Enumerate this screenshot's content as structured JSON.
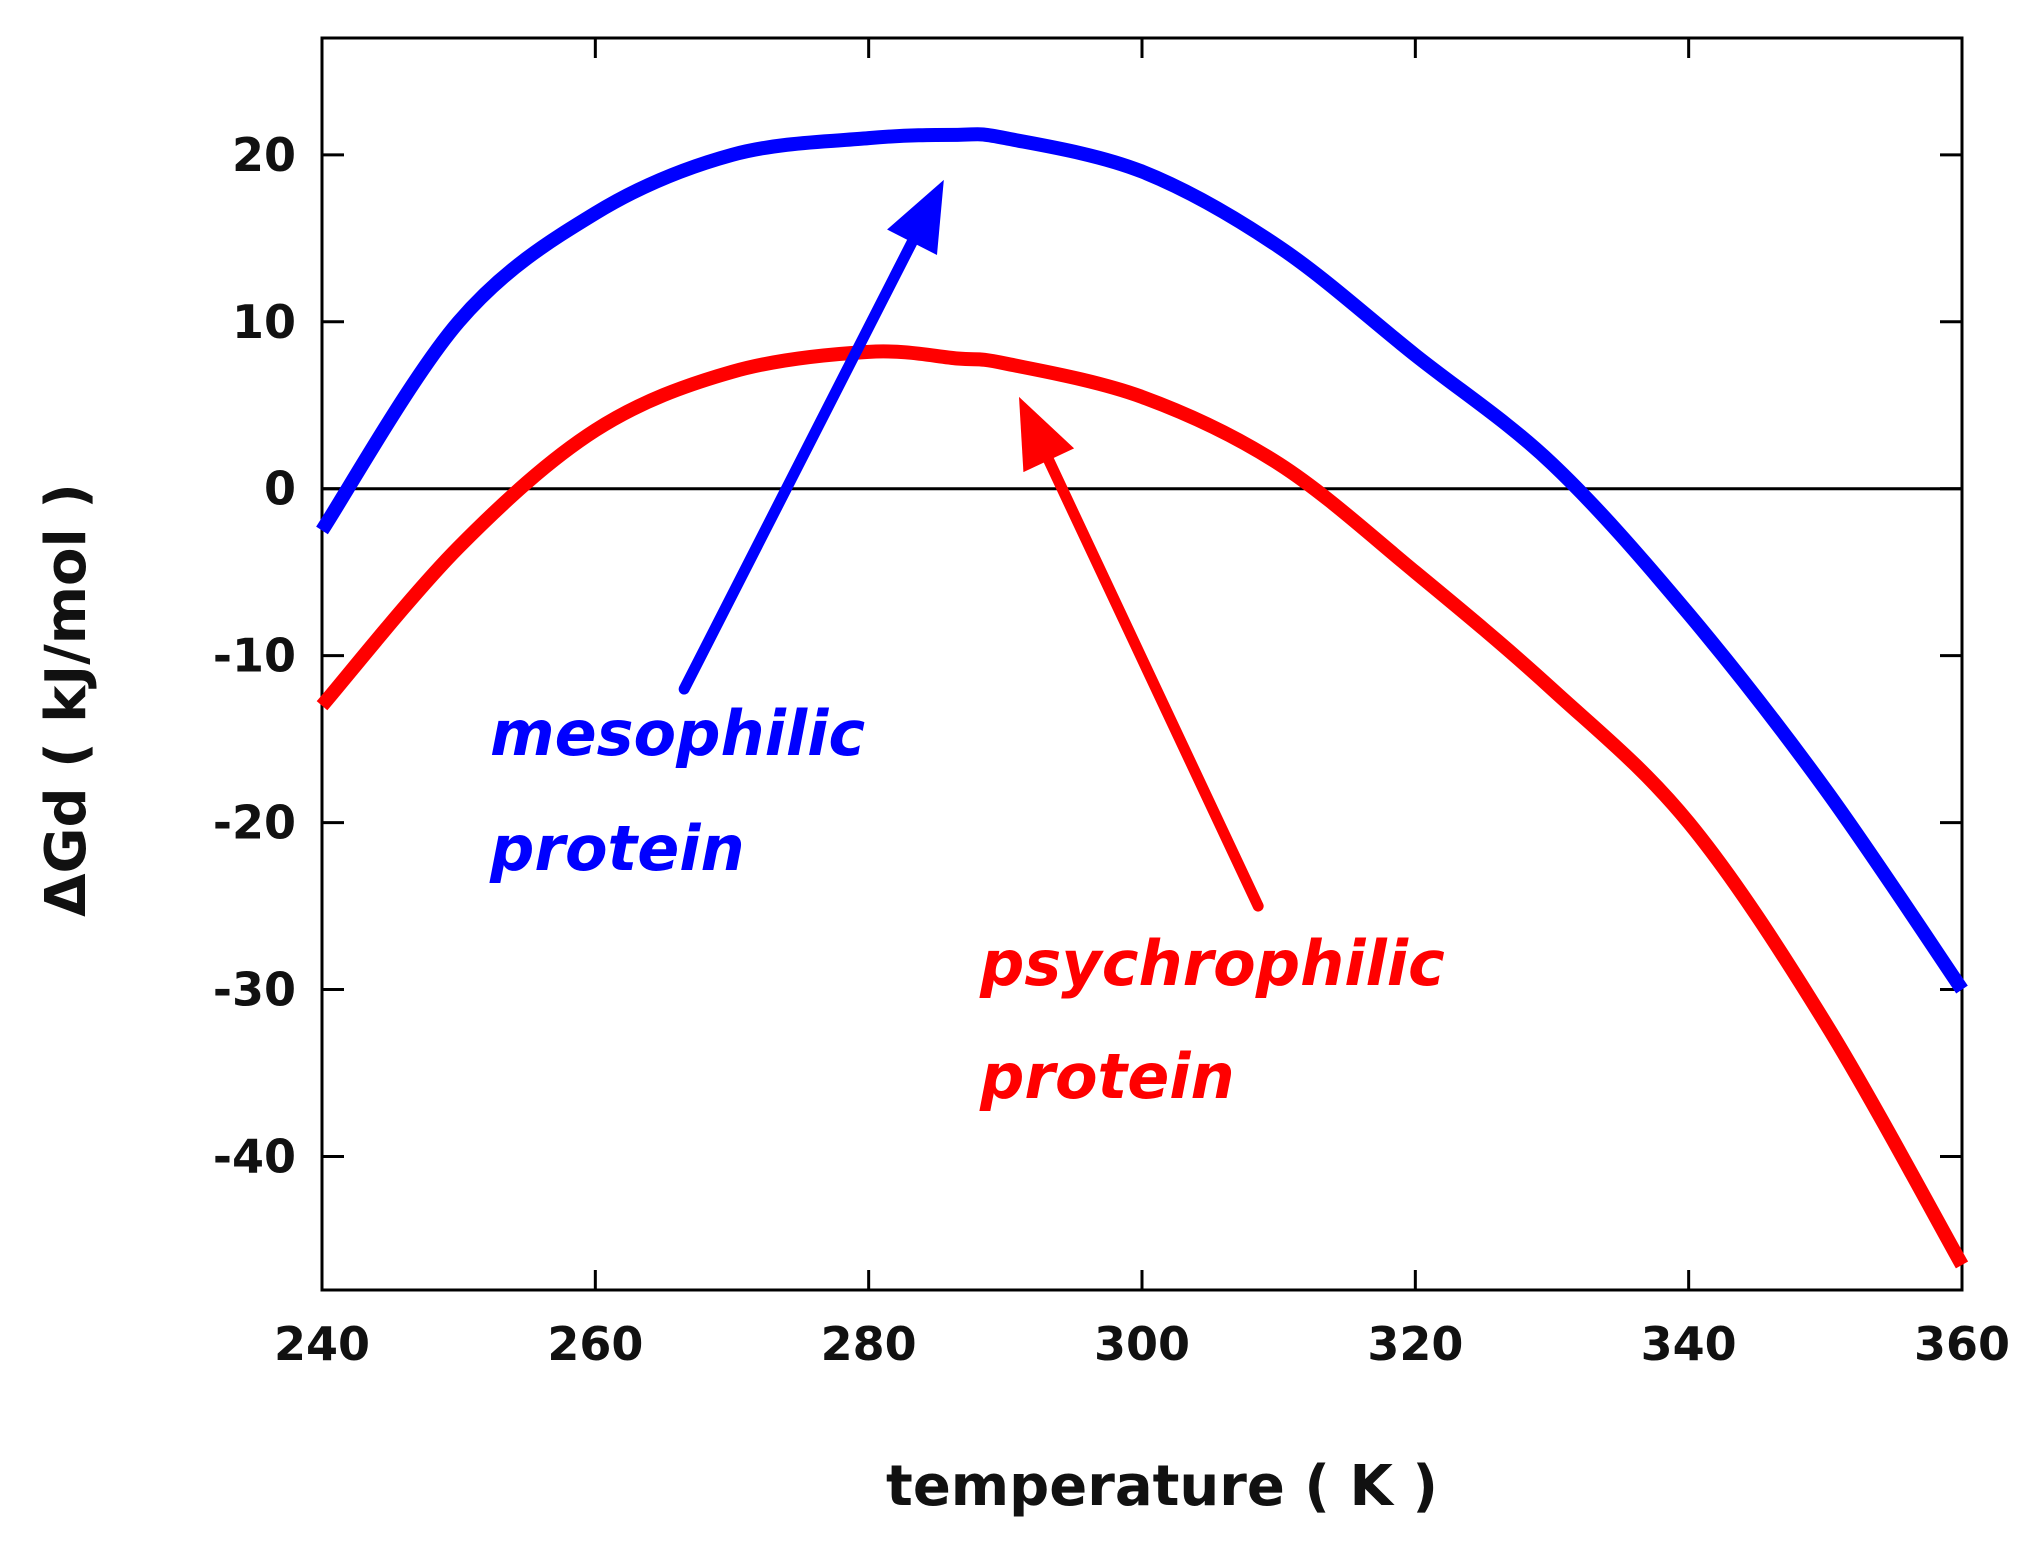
{
  "chart_data": {
    "type": "line",
    "title": "",
    "xlabel": "temperature  ( K )",
    "ylabel": "ΔGd ( kJ/mol )",
    "xlim": [
      240,
      360
    ],
    "ylim": [
      -48,
      27
    ],
    "xticks": [
      240,
      260,
      280,
      300,
      320,
      340,
      360
    ],
    "yticks": [
      20,
      10,
      0,
      -10,
      -20,
      -30,
      -40
    ],
    "xtick_labels": [
      "240",
      "260",
      "280",
      "300",
      "320",
      "340",
      "360"
    ],
    "ytick_labels": [
      "20",
      "10",
      "0",
      "-10",
      "-20",
      "-30",
      "-40"
    ],
    "zero_line": true,
    "grid": false,
    "x": [
      240,
      250,
      260,
      270,
      280,
      286.5,
      290,
      300,
      310,
      320,
      330,
      340,
      350,
      360
    ],
    "series": [
      {
        "name": "mesophilic protein",
        "color": "#0000ff",
        "values": [
          -2.5,
          10.0,
          16.5,
          20.0,
          21.0,
          21.2,
          21.0,
          19.0,
          14.5,
          8.0,
          1.5,
          -7.5,
          -18.0,
          -30.0
        ]
      },
      {
        "name": "psychrophilic protein",
        "color": "#ff0000",
        "values": [
          -13.0,
          -3.5,
          3.5,
          7.0,
          8.2,
          7.8,
          7.5,
          5.5,
          1.5,
          -5.0,
          -12.0,
          -20.0,
          -32.0,
          -46.5
        ]
      }
    ],
    "annotations": [
      {
        "id": "meso",
        "lines": [
          "mesophilic",
          "protein"
        ],
        "color": "#0000ff",
        "arrow_from": [
          266.5,
          -12.0
        ],
        "arrow_to": [
          285.5,
          18.5
        ]
      },
      {
        "id": "psychro",
        "lines": [
          "psychrophilic",
          "protein"
        ],
        "color": "#ff0000",
        "arrow_from": [
          308.5,
          -25.0
        ],
        "arrow_to": [
          291.0,
          5.5
        ]
      }
    ]
  }
}
